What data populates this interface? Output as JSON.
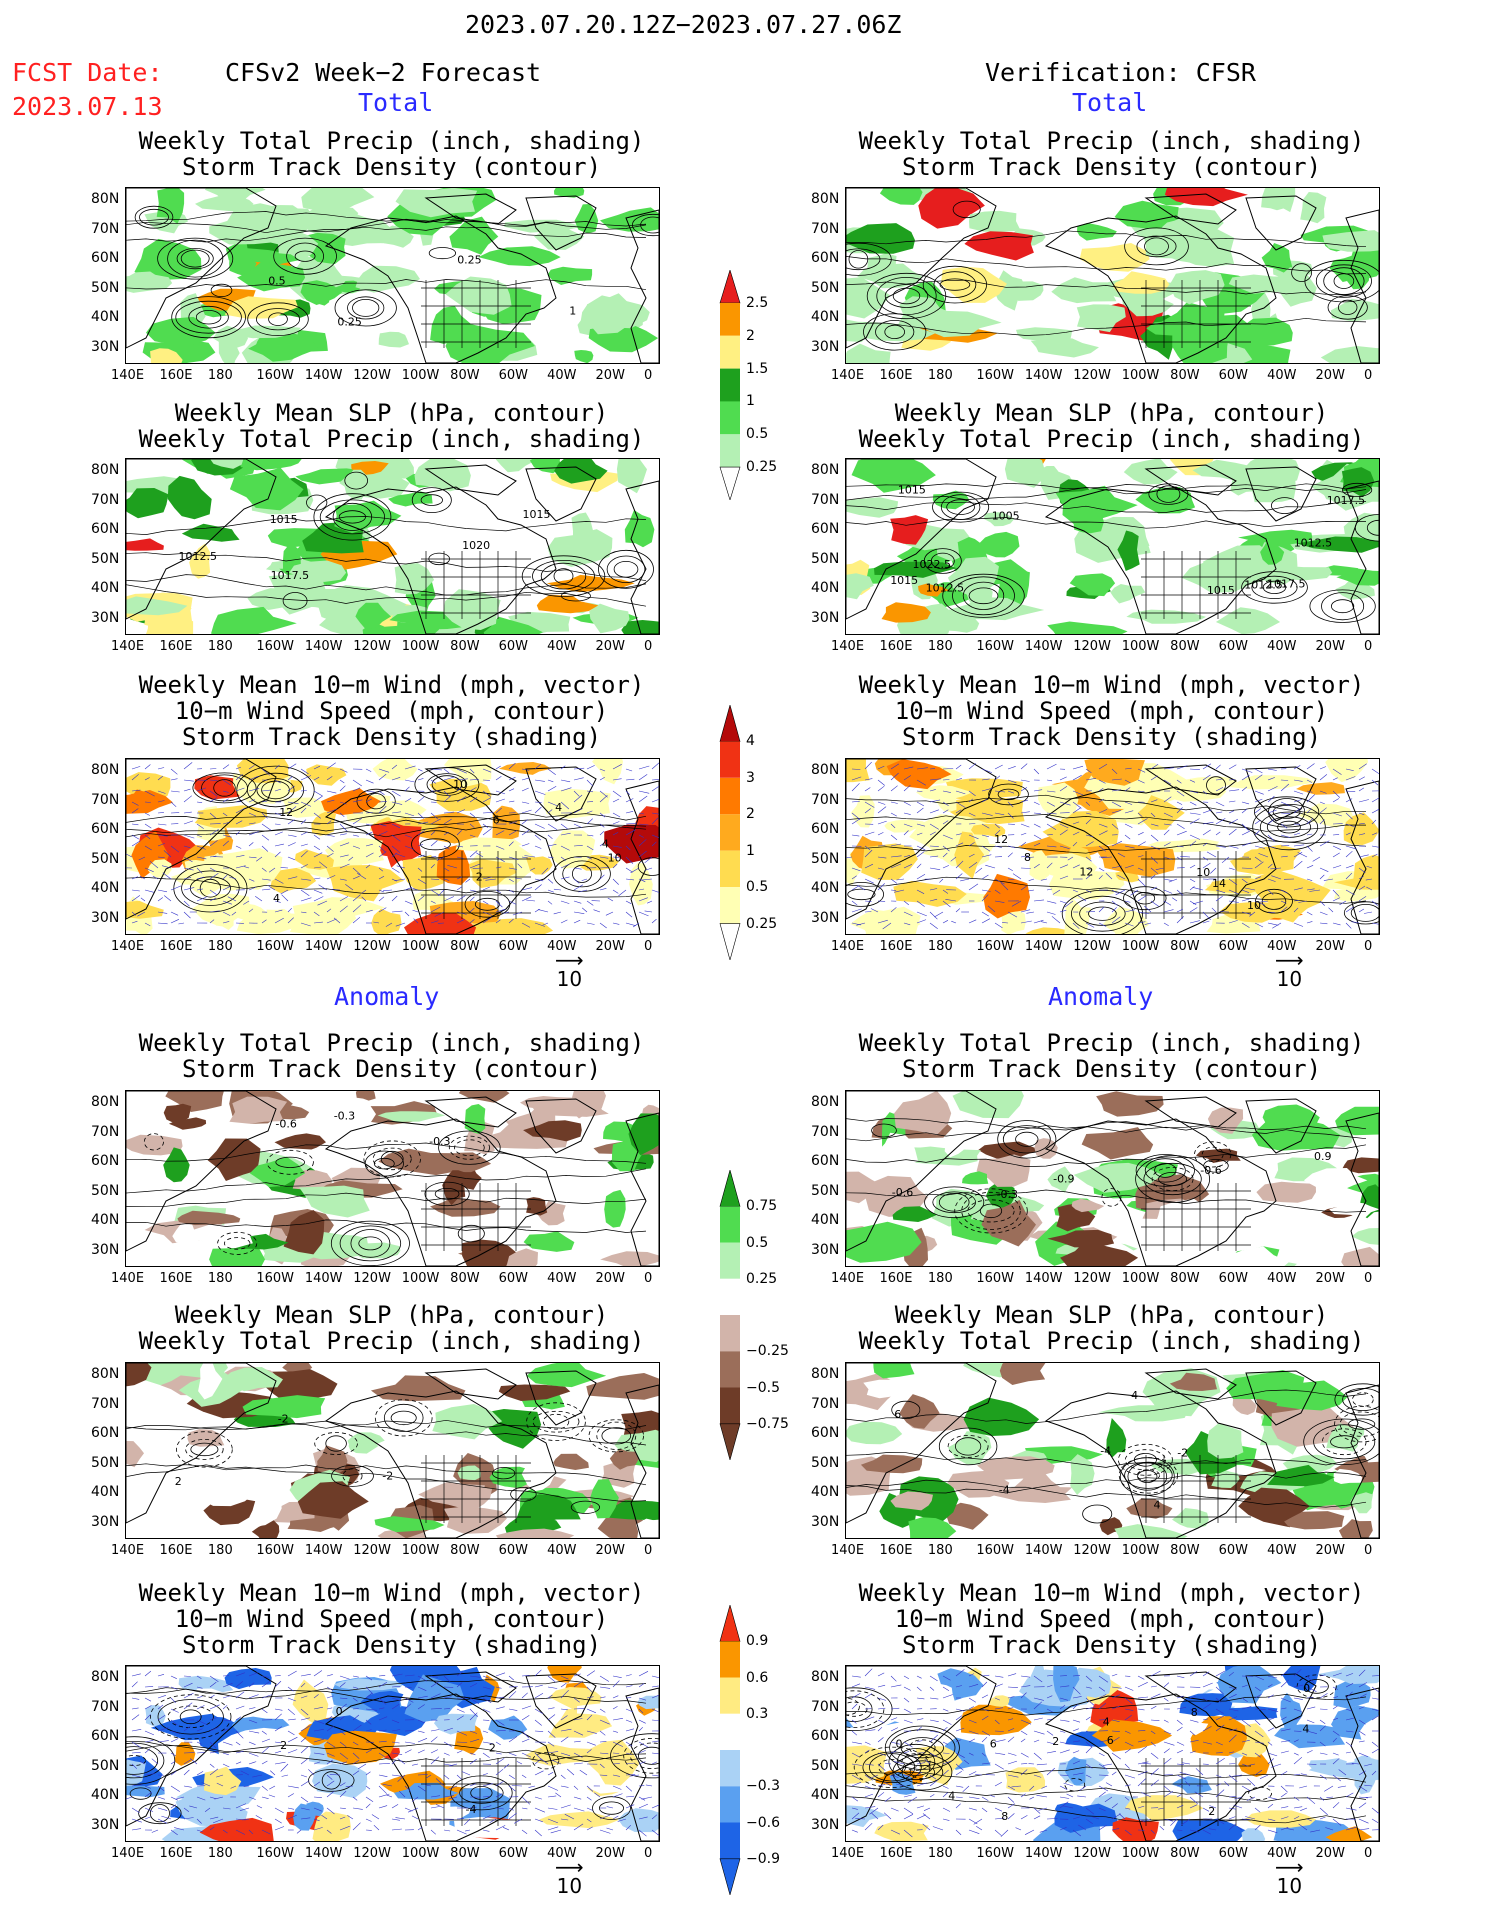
{
  "header": {
    "period": "2023.07.20.12Z−2023.07.27.06Z",
    "fcst_label": "FCST Date:",
    "fcst_date": "2023.07.13",
    "left_title": "CFSv2 Week−2 Forecast",
    "right_title": "Verification: CFSR"
  },
  "sections": {
    "total": "Total",
    "anomaly": "Anomaly"
  },
  "panels": {
    "precip_storm": [
      "Weekly Total Precip (inch, shading)",
      "Storm Track Density (contour)"
    ],
    "slp_precip": [
      "Weekly Mean SLP (hPa, contour)",
      "Weekly Total Precip (inch, shading)"
    ],
    "wind_storm": [
      "Weekly Mean 10−m Wind (mph, vector)",
      "10−m Wind Speed (mph, contour)",
      "Storm Track Density (shading)"
    ]
  },
  "axes": {
    "lat_labels": [
      "80N",
      "70N",
      "60N",
      "50N",
      "40N",
      "30N"
    ],
    "lon_labels": [
      "140E",
      "160E",
      "180",
      "160W",
      "140W",
      "120W",
      "100W",
      "80W",
      "60W",
      "40W",
      "20W",
      "0"
    ]
  },
  "vector_ref": "10",
  "colorbars": {
    "total_precip": [
      "2.5",
      "2",
      "1.5",
      "1",
      "0.5",
      "0.25"
    ],
    "total_storm": [
      "4",
      "3",
      "2",
      "1",
      "0.5",
      "0.25"
    ],
    "anom_precip": [
      "0.75",
      "0.5",
      "0.25",
      "−0.25",
      "−0.5",
      "−0.75"
    ],
    "anom_storm": [
      "0.9",
      "0.6",
      "0.3",
      "−0.3",
      "−0.6",
      "−0.9"
    ]
  },
  "contour_labels": {
    "fc_precip_total": [
      "0.5",
      "1",
      "0.25",
      "0.25"
    ],
    "fc_slp_total": [
      "1017.5",
      "1015",
      "1012.5",
      "1015",
      "1020"
    ],
    "fc_wind_total": [
      "4",
      "2",
      "6",
      "4",
      "12",
      "10",
      "4",
      "10"
    ],
    "vf_slp_total": [
      "1005",
      "1012.5",
      "1015",
      "1017.5",
      "1015",
      "1012.5",
      "1012.5",
      "1015",
      "1022.5",
      "1017.5"
    ],
    "vf_wind_total": [
      "12",
      "10",
      "14",
      "12",
      "8",
      "10"
    ],
    "fc_precip_anom": [
      "-0.6",
      "-0.3",
      "-0.3"
    ],
    "vf_precip_anom": [
      "-0.3",
      "-0.6",
      "-0.9",
      "-0.6",
      "0.9"
    ],
    "fc_slp_anom": [
      "-2",
      "-2",
      "2"
    ],
    "vf_slp_anom": [
      "-4",
      "4",
      "6",
      "-2",
      "4",
      "-4"
    ],
    "fc_wind_anom": [
      "2",
      "0",
      "2",
      "-4"
    ],
    "vf_wind_anom": [
      "8",
      "6",
      "2",
      "6",
      "4",
      "2",
      "4",
      "0",
      "0",
      "4",
      "8"
    ]
  },
  "colors": {
    "precip": [
      "#ffffff",
      "#b4f0b4",
      "#50dc50",
      "#1ea01e",
      "#fff082",
      "#fa9600",
      "#e61e1e"
    ],
    "storm": [
      "#ffffff",
      "#ffffb4",
      "#ffdc50",
      "#ffaa1e",
      "#ff7a00",
      "#f03214",
      "#b40a0a"
    ],
    "anom_precip": [
      "#6e3c28",
      "#9b6e5a",
      "#d2b4aa",
      "#ffffff",
      "#b4f0b4",
      "#50dc50",
      "#1ea01e"
    ],
    "anom_storm": [
      "#1e64e6",
      "#5aa0f0",
      "#aad2f5",
      "#ffffff",
      "#ffeb82",
      "#fa9600",
      "#f03214"
    ]
  }
}
